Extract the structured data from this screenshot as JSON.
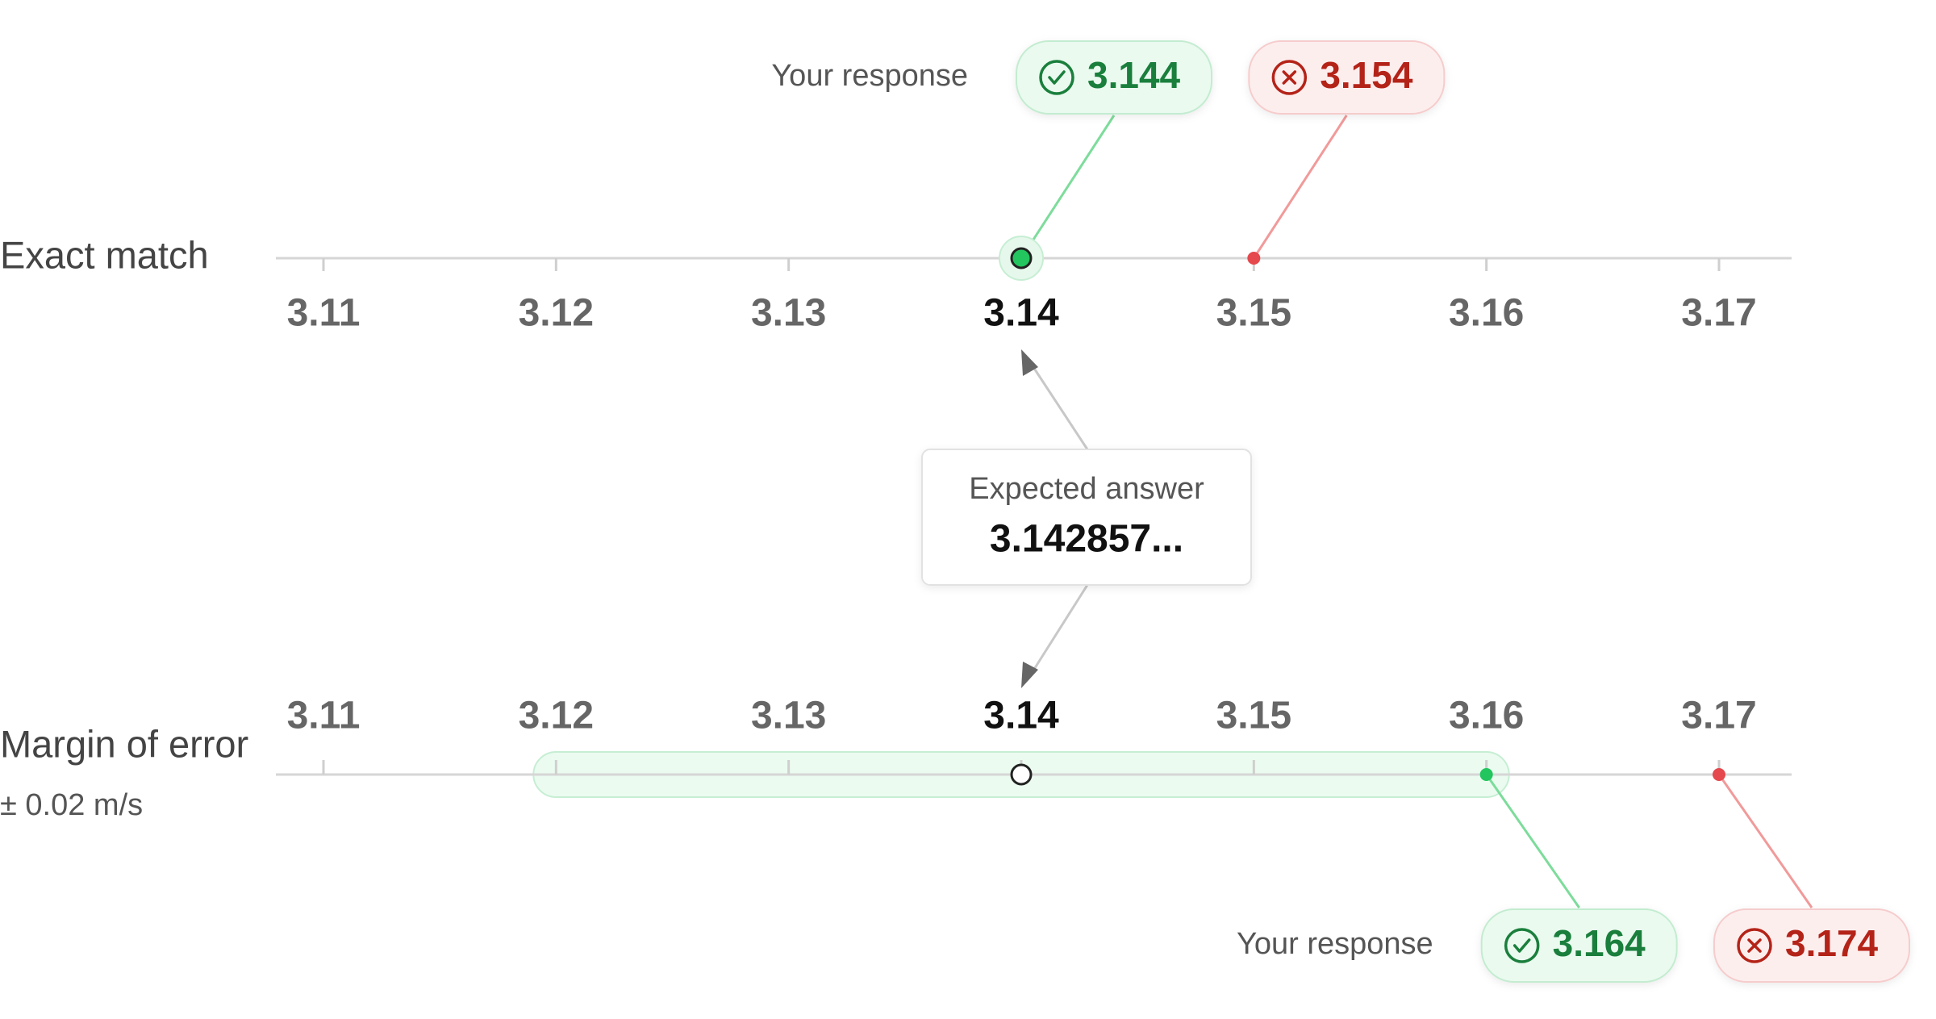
{
  "expected": {
    "label": "Expected answer",
    "value_text": "3.142857...",
    "position": 3.14
  },
  "scales": [
    {
      "label": "Exact match",
      "ticks": [
        3.11,
        3.12,
        3.13,
        3.14,
        3.15,
        3.16,
        3.17
      ],
      "response_label": "Your response",
      "responses": [
        {
          "value": 3.144,
          "position": 3.14,
          "status": "correct"
        },
        {
          "value": 3.154,
          "position": 3.15,
          "status": "incorrect"
        }
      ]
    },
    {
      "label": "Margin of error",
      "sublabel": "± 0.02 m/s",
      "range": [
        3.12,
        3.16
      ],
      "ticks": [
        3.11,
        3.12,
        3.13,
        3.14,
        3.15,
        3.16,
        3.17
      ],
      "response_label": "Your response",
      "responses": [
        {
          "value": 3.164,
          "position": 3.16,
          "status": "correct"
        },
        {
          "value": 3.174,
          "position": 3.17,
          "status": "incorrect"
        }
      ]
    }
  ]
}
